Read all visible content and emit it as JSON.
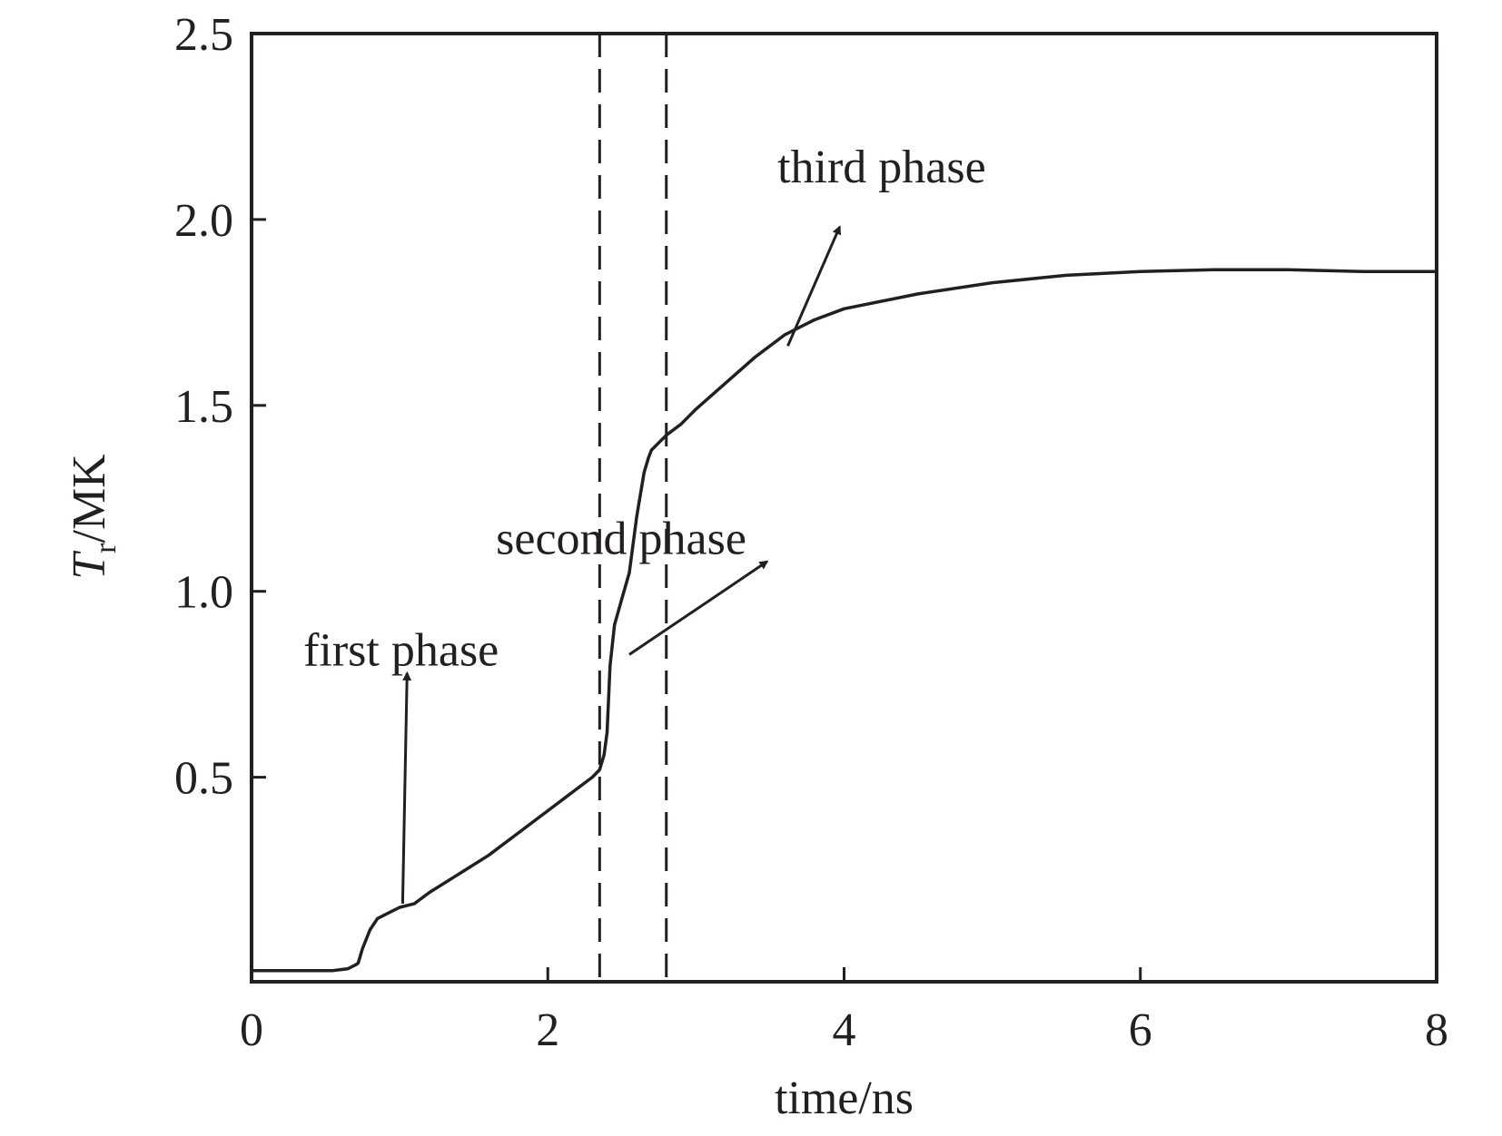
{
  "chart_data": {
    "type": "line",
    "xlabel": "time/ns",
    "ylabel_main": "T",
    "ylabel_sub": "r",
    "ylabel_unit": "/MK",
    "xlim": [
      0,
      8
    ],
    "ylim": [
      -0.05,
      2.5
    ],
    "x_ticks": [
      0,
      2,
      4,
      6,
      8
    ],
    "x_tick_labels": [
      "0",
      "2",
      "4",
      "6",
      "8"
    ],
    "y_ticks": [
      0.5,
      1.0,
      1.5,
      2.0,
      2.5
    ],
    "y_tick_labels": [
      "0.5",
      "1.0",
      "1.5",
      "2.0",
      "2.5"
    ],
    "grid": false,
    "line_color": "#231f20",
    "series": [
      {
        "x": [
          0,
          0.2,
          0.4,
          0.55,
          0.65,
          0.7,
          0.72,
          0.75,
          0.8,
          0.85,
          0.9,
          0.95,
          1.0,
          1.1,
          1.2,
          1.4,
          1.6,
          1.8,
          2.0,
          2.2,
          2.3,
          2.35,
          2.38,
          2.4,
          2.42,
          2.45,
          2.5,
          2.55,
          2.6,
          2.65,
          2.68,
          2.7,
          2.75,
          2.8,
          2.9,
          3.0,
          3.2,
          3.4,
          3.6,
          3.8,
          4.0,
          4.5,
          5.0,
          5.5,
          6.0,
          6.5,
          7.0,
          7.5,
          8.0
        ],
        "y": [
          -0.02,
          -0.02,
          -0.02,
          -0.02,
          -0.015,
          -0.005,
          0.0,
          0.04,
          0.09,
          0.12,
          0.13,
          0.14,
          0.15,
          0.16,
          0.19,
          0.24,
          0.29,
          0.35,
          0.41,
          0.47,
          0.5,
          0.52,
          0.56,
          0.62,
          0.8,
          0.91,
          0.98,
          1.05,
          1.2,
          1.32,
          1.36,
          1.38,
          1.4,
          1.42,
          1.45,
          1.49,
          1.56,
          1.63,
          1.69,
          1.73,
          1.76,
          1.8,
          1.83,
          1.85,
          1.86,
          1.865,
          1.865,
          1.86,
          1.86
        ]
      }
    ],
    "vlines": [
      2.35,
      2.8
    ],
    "annotations": [
      {
        "text": "first phase",
        "label_x": 0.35,
        "label_y": 0.8,
        "arrow_from": [
          1.02,
          0.16
        ],
        "arrow_to": [
          1.05,
          0.78
        ]
      },
      {
        "text": "second phase",
        "label_x": 1.65,
        "label_y": 1.1,
        "arrow_from": [
          2.55,
          0.83
        ],
        "arrow_to": [
          3.48,
          1.08
        ]
      },
      {
        "text": "third phase",
        "label_x": 3.55,
        "label_y": 2.1,
        "arrow_from": [
          3.62,
          1.66
        ],
        "arrow_to": [
          3.97,
          1.98
        ]
      }
    ]
  }
}
